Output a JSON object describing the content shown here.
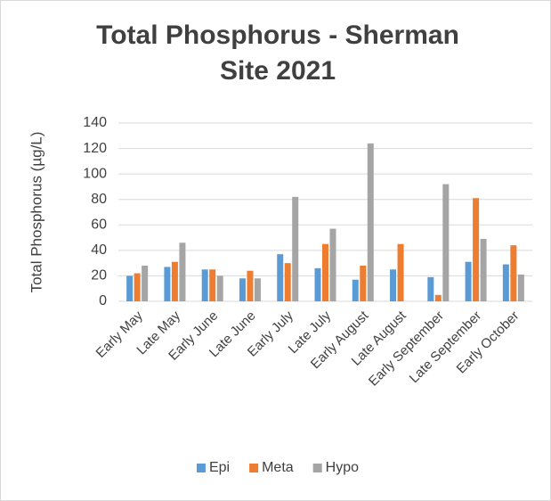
{
  "chart_data": {
    "type": "bar",
    "title": "Total Phosphorus - Sherman Site 2021",
    "y_label": "Total Phosphorus (µg/L)",
    "categories": [
      "Early May",
      "Late May",
      "Early June",
      "Late June",
      "Early July",
      "Late July",
      "Early August",
      "Late August",
      "Early September",
      "Late September",
      "Early October"
    ],
    "series": [
      {
        "name": "Epi",
        "color": "#5b9bd5",
        "values": [
          20,
          27,
          25,
          18,
          37,
          26,
          17,
          25,
          19,
          31,
          29
        ]
      },
      {
        "name": "Meta",
        "color": "#ed7d31",
        "values": [
          22,
          31,
          25,
          24,
          30,
          45,
          28,
          45,
          5,
          81,
          44
        ]
      },
      {
        "name": "Hypo",
        "color": "#a5a5a5",
        "values": [
          28,
          46,
          20,
          18,
          82,
          57,
          124,
          null,
          92,
          49,
          21
        ]
      }
    ],
    "ylim": [
      0,
      140
    ],
    "yticks": [
      0,
      20,
      40,
      60,
      80,
      100,
      120,
      140
    ],
    "grid": true,
    "legend": "bottom"
  }
}
